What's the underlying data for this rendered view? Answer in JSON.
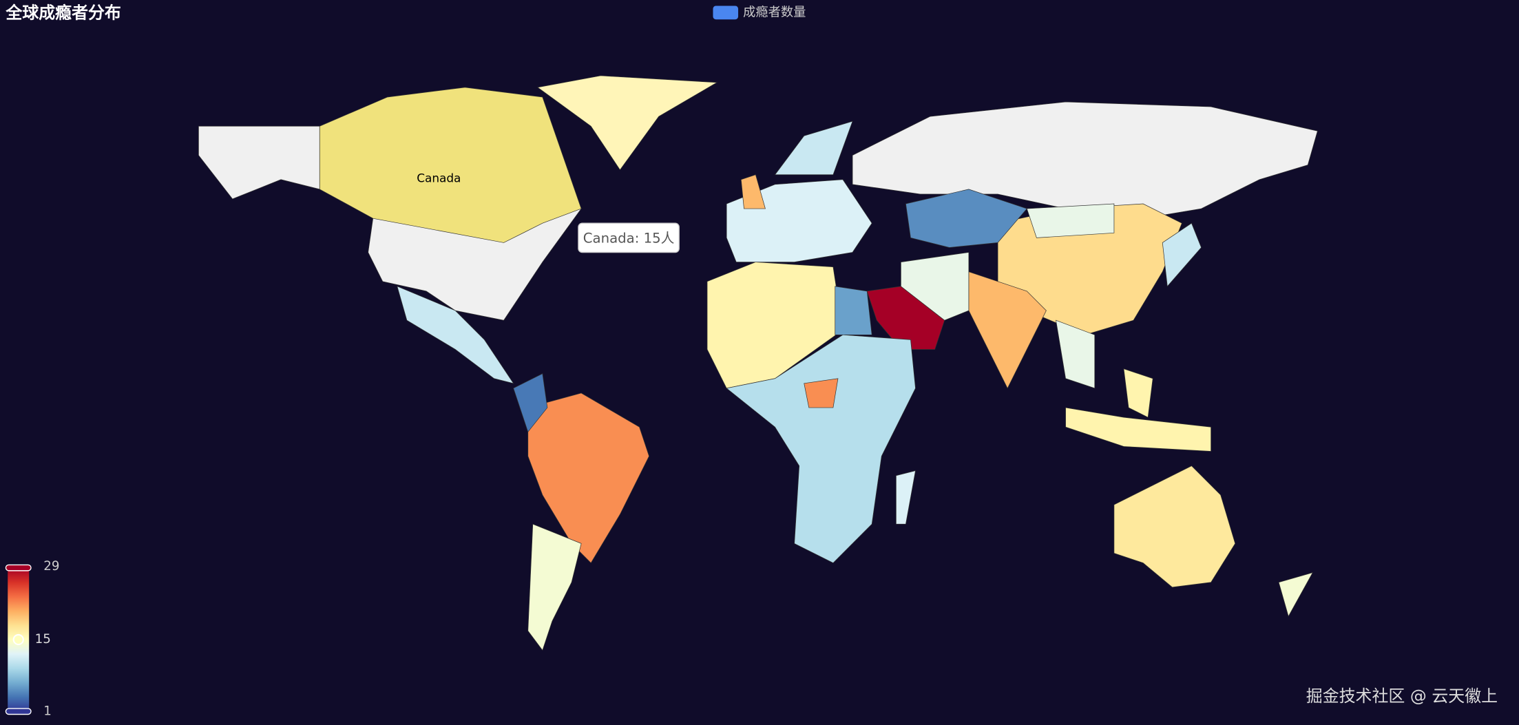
{
  "chart_data": {
    "type": "map",
    "title": "全球成瘾者分布",
    "legend": {
      "name": "成瘾者数量",
      "color": "#4a86f0"
    },
    "tooltip": "Canada: 15人",
    "watermark": "掘金技术社区 @ 云天徽上",
    "visual_map": {
      "min": 1,
      "max": 29,
      "indicator": 15,
      "colors": [
        "#313695",
        "#4575b4",
        "#74add1",
        "#abd9e9",
        "#e0f3f8",
        "#ffffbf",
        "#fee090",
        "#fdae61",
        "#f46d43",
        "#d73027",
        "#a50026"
      ]
    },
    "highlight_color": "#f0e27c",
    "regions": [
      {
        "name": "Canada",
        "value": 15
      },
      {
        "value": 18
      },
      {
        "value": 20
      },
      {
        "value": 5
      },
      {
        "value": 29
      },
      {
        "value": 22
      },
      {
        "value": 4
      },
      {
        "value": 14
      },
      {
        "value": 17
      },
      {
        "value": 16
      },
      {
        "value": 6
      },
      {
        "value": 10
      },
      {
        "value": 22
      },
      {
        "value": 12
      },
      {
        "value": 11
      },
      {
        "value": 20
      },
      {
        "value": 11
      },
      {
        "value": 13
      },
      {
        "value": 16
      },
      {
        "value": 13
      },
      {
        "value": 12
      },
      {
        "value": 14
      },
      {
        "value": 11
      },
      {
        "value": 13
      },
      {
        "value": 16
      }
    ]
  }
}
